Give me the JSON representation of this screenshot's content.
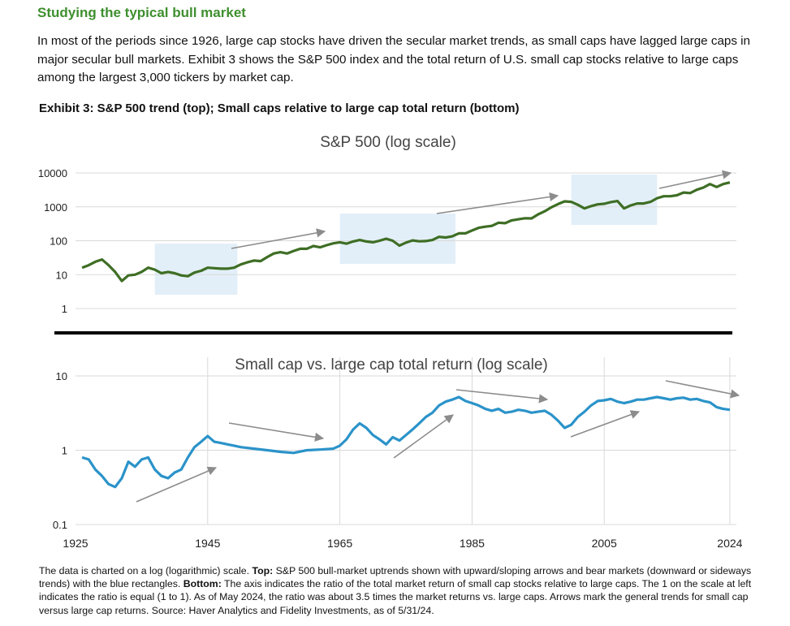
{
  "heading": "Studying the typical bull market",
  "intro": "In most of the periods since 1926, large cap stocks have driven the secular market trends, as small caps have lagged large caps in major secular bull markets. Exhibit 3 shows the S&P 500 index and the total return of U.S. small cap stocks relative to large caps among the largest 3,000 tickers by market cap.",
  "exhibit_title": "Exhibit 3: S&P 500 trend (top); Small caps relative to large cap total return (bottom)",
  "caption": {
    "p1": "The data is charted on a log (logarithmic) scale. ",
    "b1": "Top:",
    "p2": " S&P 500 bull-market uptrends shown with upward/sloping arrows and bear markets (downward or sideways trends) with the blue rectangles. ",
    "b2": "Bottom:",
    "p3": " The axis indicates the ratio of the total market return of small cap stocks relative to large caps. The 1 on the scale at left indicates the ratio is equal (1 to 1). As of May 2024, the ratio was about 3.5 times the market returns vs. large caps. Arrows mark the general trends for small cap versus large cap returns. Source: Haver Analytics and Fidelity Investments, as of 5/31/24."
  },
  "colors": {
    "sp500_line": "#3e6e25",
    "ratio_line": "#2b93c9",
    "rect_fill": "#e3eff8",
    "arrow": "#8c8c8c",
    "heading": "#3f8f2f"
  },
  "chart_data": [
    {
      "type": "line",
      "title": "S&P 500 (log scale)",
      "y_scale": "log",
      "ylim": [
        1,
        10000
      ],
      "y_ticks": [
        "10000",
        "1000",
        "100",
        "10",
        "1"
      ],
      "xlim": [
        1925,
        2025
      ],
      "series": [
        {
          "x": [
            1926,
            1927,
            1928,
            1929,
            1930,
            1931,
            1932,
            1933,
            1934,
            1935,
            1936,
            1937,
            1938,
            1939,
            1940,
            1941,
            1942,
            1943,
            1944,
            1945,
            1946,
            1947,
            1948,
            1949,
            1950,
            1951,
            1952,
            1953,
            1954,
            1955,
            1956,
            1957,
            1958,
            1959,
            1960,
            1961,
            1962,
            1963,
            1964,
            1965,
            1966,
            1967,
            1968,
            1969,
            1970,
            1971,
            1972,
            1973,
            1974,
            1975,
            1976,
            1977,
            1978,
            1979,
            1980,
            1981,
            1982,
            1983,
            1984,
            1985,
            1986,
            1987,
            1988,
            1989,
            1990,
            1991,
            1992,
            1993,
            1994,
            1995,
            1996,
            1997,
            1998,
            1999,
            2000,
            2001,
            2002,
            2003,
            2004,
            2005,
            2006,
            2007,
            2008,
            2009,
            2010,
            2011,
            2012,
            2013,
            2014,
            2015,
            2016,
            2017,
            2018,
            2019,
            2020,
            2021,
            2022,
            2023,
            2024
          ],
          "values": [
            16,
            19,
            24,
            28,
            19,
            12,
            6.5,
            9.5,
            10,
            12,
            16,
            14,
            11,
            12,
            11,
            9.5,
            9,
            11.5,
            13,
            16,
            15.5,
            15,
            15,
            16,
            20,
            23,
            26,
            25,
            33,
            42,
            46,
            42,
            50,
            58,
            58,
            70,
            64,
            74,
            84,
            90,
            82,
            95,
            105,
            95,
            90,
            100,
            115,
            100,
            72,
            88,
            102,
            96,
            98,
            105,
            130,
            125,
            135,
            165,
            165,
            200,
            240,
            260,
            275,
            340,
            330,
            400,
            430,
            460,
            455,
            600,
            740,
            970,
            1200,
            1450,
            1400,
            1150,
            900,
            1050,
            1180,
            1230,
            1380,
            1480,
            900,
            1100,
            1260,
            1260,
            1400,
            1800,
            2050,
            2050,
            2200,
            2650,
            2550,
            3200,
            3700,
            4700,
            3850,
            4700,
            5250
          ]
        }
      ],
      "bear_rectangles": [
        [
          1937,
          1949.5
        ],
        [
          1965,
          1982.5
        ],
        [
          2000,
          2013
        ]
      ]
    },
    {
      "type": "line",
      "title": "Small cap vs. large cap total return (log scale)",
      "y_scale": "log",
      "ylim": [
        0.1,
        10
      ],
      "y_ticks": [
        "10",
        "1",
        "0.1"
      ],
      "x_ticks": [
        "1925",
        "1945",
        "1965",
        "1985",
        "2005",
        "2024"
      ],
      "xlim": [
        1925,
        2025
      ],
      "series": [
        {
          "x": [
            1926,
            1927,
            1928,
            1929,
            1930,
            1931,
            1932,
            1933,
            1934,
            1935,
            1936,
            1937,
            1938,
            1939,
            1940,
            1941,
            1942,
            1943,
            1944,
            1945,
            1946,
            1947,
            1948,
            1949,
            1950,
            1952,
            1954,
            1956,
            1958,
            1960,
            1962,
            1964,
            1965,
            1966,
            1967,
            1968,
            1969,
            1970,
            1971,
            1972,
            1973,
            1974,
            1975,
            1976,
            1977,
            1978,
            1979,
            1980,
            1981,
            1982,
            1983,
            1984,
            1985,
            1986,
            1987,
            1988,
            1989,
            1990,
            1991,
            1992,
            1993,
            1994,
            1995,
            1996,
            1997,
            1998,
            1999,
            2000,
            2001,
            2002,
            2003,
            2004,
            2005,
            2006,
            2007,
            2008,
            2009,
            2010,
            2011,
            2012,
            2013,
            2014,
            2015,
            2016,
            2017,
            2018,
            2019,
            2020,
            2021,
            2022,
            2023,
            2024
          ],
          "values": [
            0.8,
            0.75,
            0.55,
            0.45,
            0.35,
            0.32,
            0.42,
            0.7,
            0.6,
            0.75,
            0.8,
            0.55,
            0.45,
            0.42,
            0.5,
            0.55,
            0.8,
            1.1,
            1.3,
            1.55,
            1.3,
            1.25,
            1.2,
            1.15,
            1.1,
            1.05,
            1.0,
            0.95,
            0.92,
            1.0,
            1.02,
            1.05,
            1.15,
            1.4,
            1.9,
            2.3,
            2.0,
            1.6,
            1.4,
            1.2,
            1.5,
            1.35,
            1.6,
            1.9,
            2.3,
            2.8,
            3.2,
            4.0,
            4.5,
            4.8,
            5.2,
            4.6,
            4.3,
            4.0,
            3.6,
            3.4,
            3.6,
            3.2,
            3.3,
            3.5,
            3.4,
            3.2,
            3.3,
            3.4,
            3.0,
            2.5,
            2.0,
            2.2,
            2.8,
            3.3,
            4.0,
            4.6,
            4.7,
            4.9,
            4.5,
            4.3,
            4.5,
            4.8,
            4.8,
            5.0,
            5.2,
            5.0,
            4.8,
            5.0,
            5.1,
            4.8,
            4.9,
            4.6,
            4.4,
            3.8,
            3.6,
            3.5
          ]
        }
      ]
    }
  ]
}
